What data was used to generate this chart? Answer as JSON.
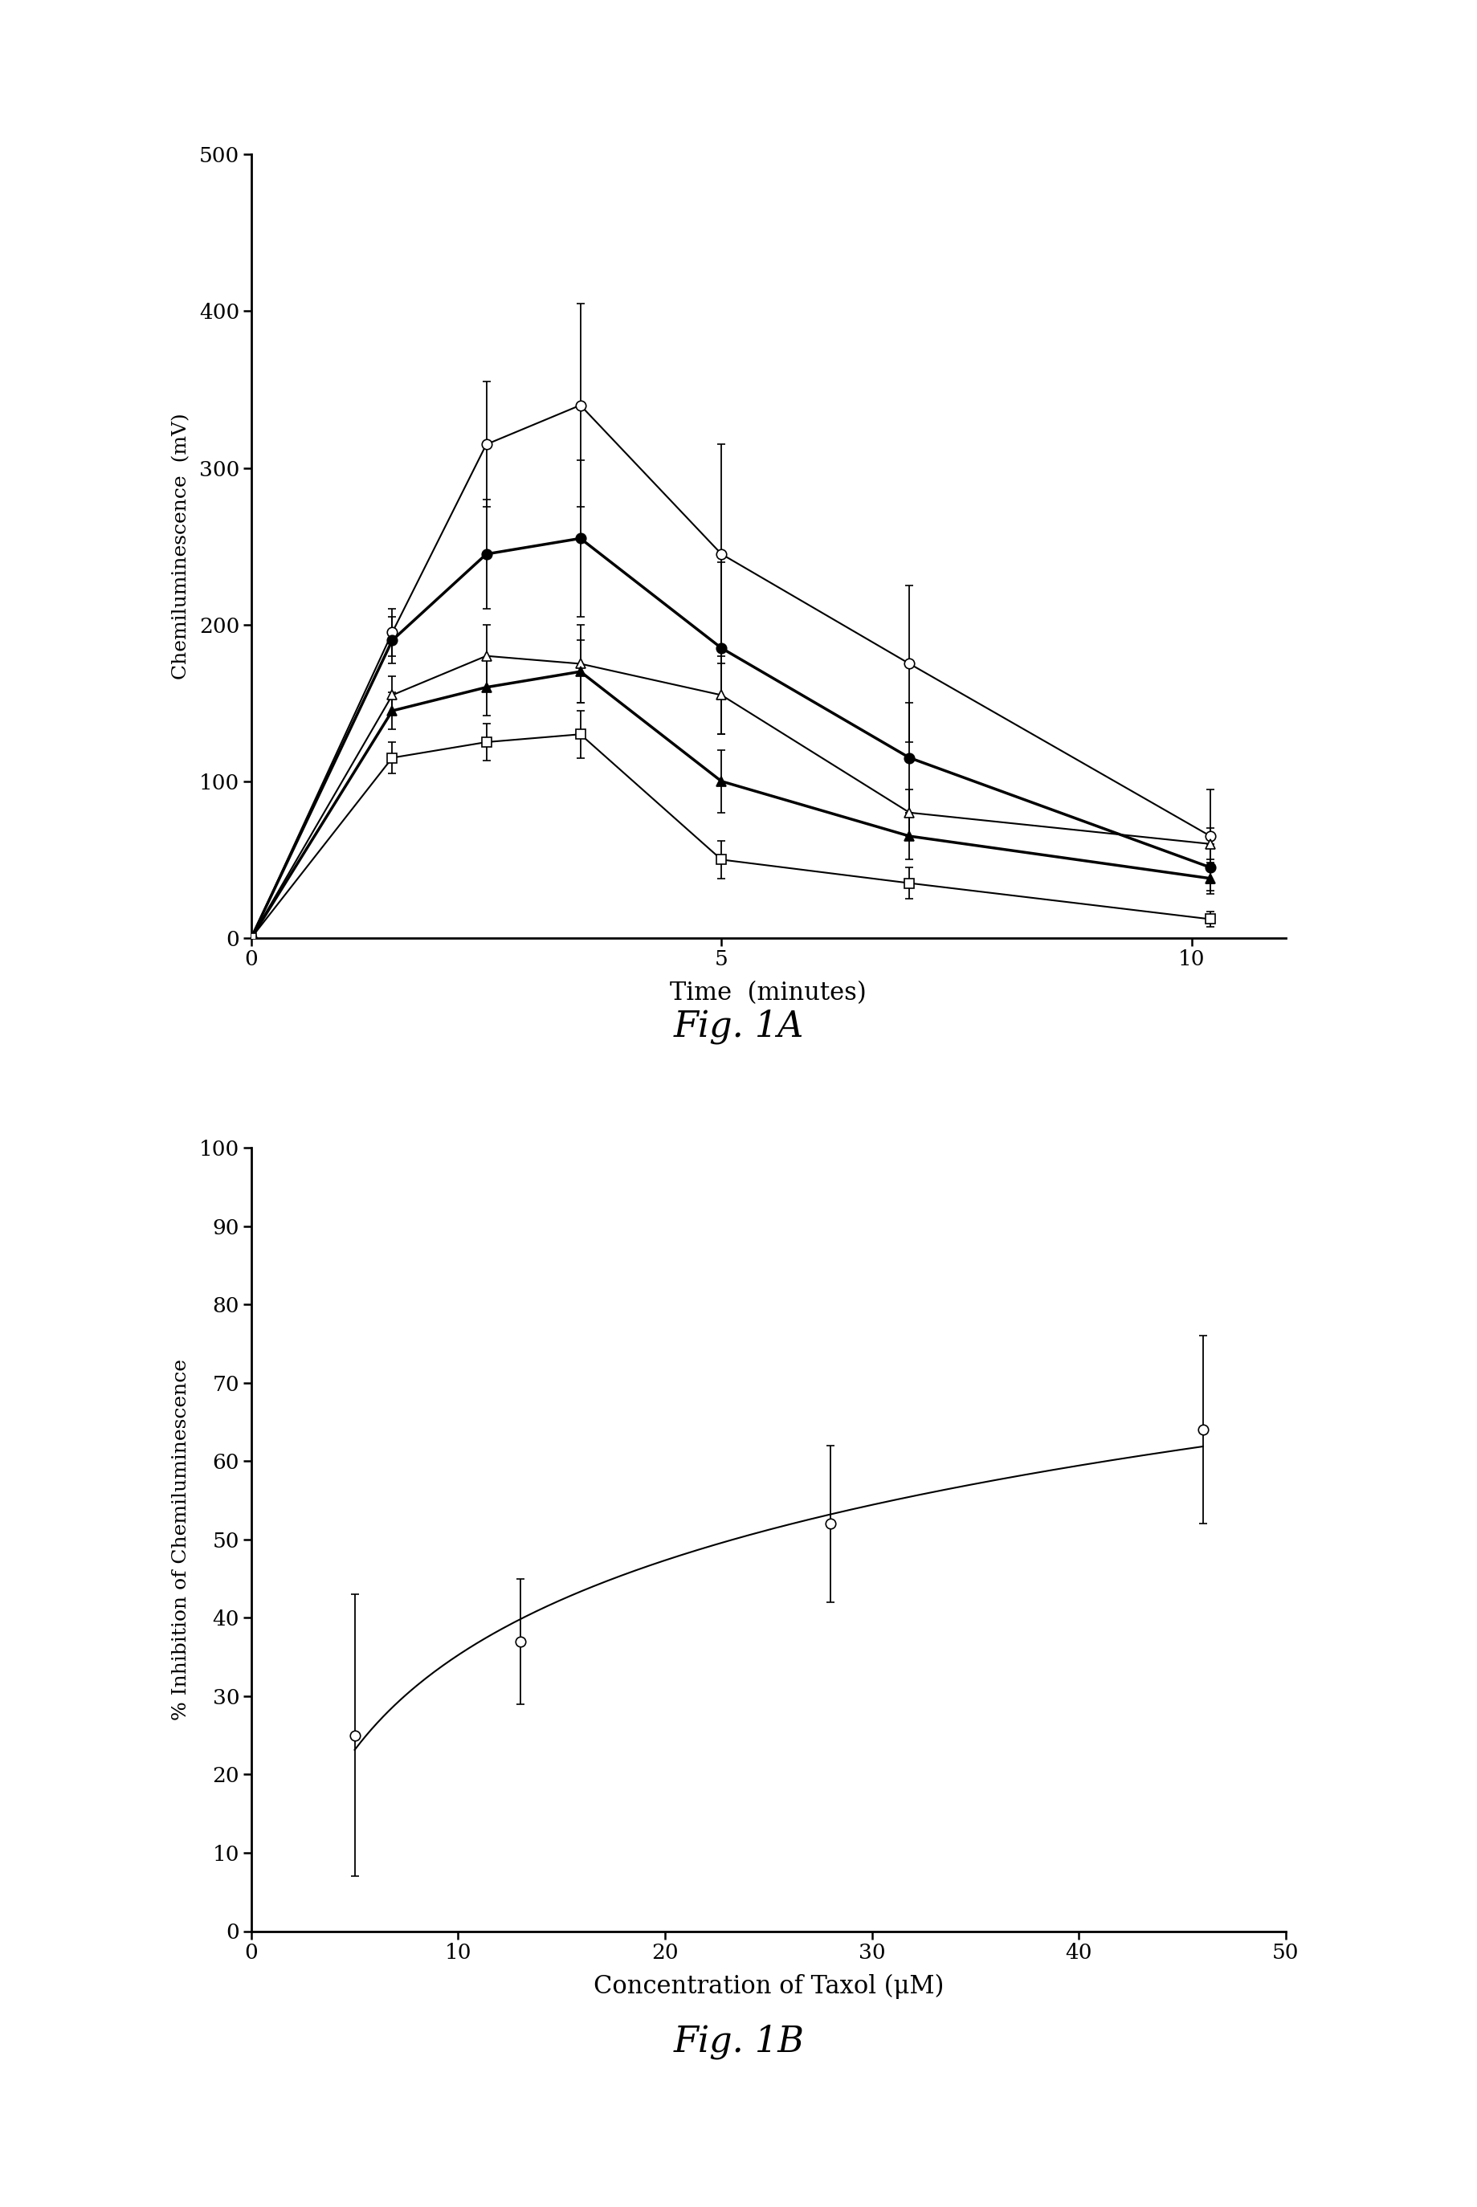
{
  "fig1A": {
    "xlabel": "Time  (minutes)",
    "ylabel": "Chemiluminescence  (mV)",
    "xlim": [
      0,
      11
    ],
    "ylim": [
      0,
      500
    ],
    "xticks": [
      0,
      5,
      10
    ],
    "yticks": [
      0,
      100,
      200,
      300,
      400,
      500
    ],
    "series": [
      {
        "x": [
          0,
          1.5,
          2.5,
          3.5,
          5,
          7,
          10.2
        ],
        "y": [
          0,
          195,
          315,
          340,
          245,
          175,
          65
        ],
        "yerr": [
          0,
          15,
          40,
          65,
          70,
          50,
          30
        ],
        "marker": "o",
        "fillstyle": "none",
        "linewidth": 1.5
      },
      {
        "x": [
          0,
          1.5,
          2.5,
          3.5,
          5,
          7,
          10.2
        ],
        "y": [
          0,
          190,
          245,
          255,
          185,
          115,
          45
        ],
        "yerr": [
          0,
          15,
          35,
          50,
          55,
          35,
          15
        ],
        "marker": "o",
        "fillstyle": "full",
        "linewidth": 2.5
      },
      {
        "x": [
          0,
          1.5,
          2.5,
          3.5,
          5,
          7,
          10.2
        ],
        "y": [
          0,
          155,
          180,
          175,
          155,
          80,
          60
        ],
        "yerr": [
          0,
          12,
          20,
          25,
          25,
          15,
          10
        ],
        "marker": "^",
        "fillstyle": "none",
        "linewidth": 1.5
      },
      {
        "x": [
          0,
          1.5,
          2.5,
          3.5,
          5,
          7,
          10.2
        ],
        "y": [
          0,
          145,
          160,
          170,
          100,
          65,
          38
        ],
        "yerr": [
          0,
          12,
          18,
          20,
          20,
          15,
          10
        ],
        "marker": "^",
        "fillstyle": "full",
        "linewidth": 2.5
      },
      {
        "x": [
          0,
          1.5,
          2.5,
          3.5,
          5,
          7,
          10.2
        ],
        "y": [
          0,
          115,
          125,
          130,
          50,
          35,
          12
        ],
        "yerr": [
          0,
          10,
          12,
          15,
          12,
          10,
          5
        ],
        "marker": "s",
        "fillstyle": "none",
        "linewidth": 1.5
      }
    ]
  },
  "fig1B": {
    "xlabel": "Concentration of Taxol (μM)",
    "ylabel": "% Inhibition of Chemiluminescence",
    "xlim": [
      0,
      50
    ],
    "ylim": [
      0,
      100
    ],
    "xticks": [
      0,
      10,
      20,
      30,
      40,
      50
    ],
    "yticks": [
      0,
      10,
      20,
      30,
      40,
      50,
      60,
      70,
      80,
      90,
      100
    ],
    "x": [
      5,
      13,
      28,
      46
    ],
    "y": [
      25,
      37,
      52,
      64
    ],
    "yerr": [
      18,
      8,
      10,
      12
    ]
  },
  "fig1A_label": "Fig. 1A",
  "fig1B_label": "Fig. 1B",
  "background_color": "#ffffff"
}
